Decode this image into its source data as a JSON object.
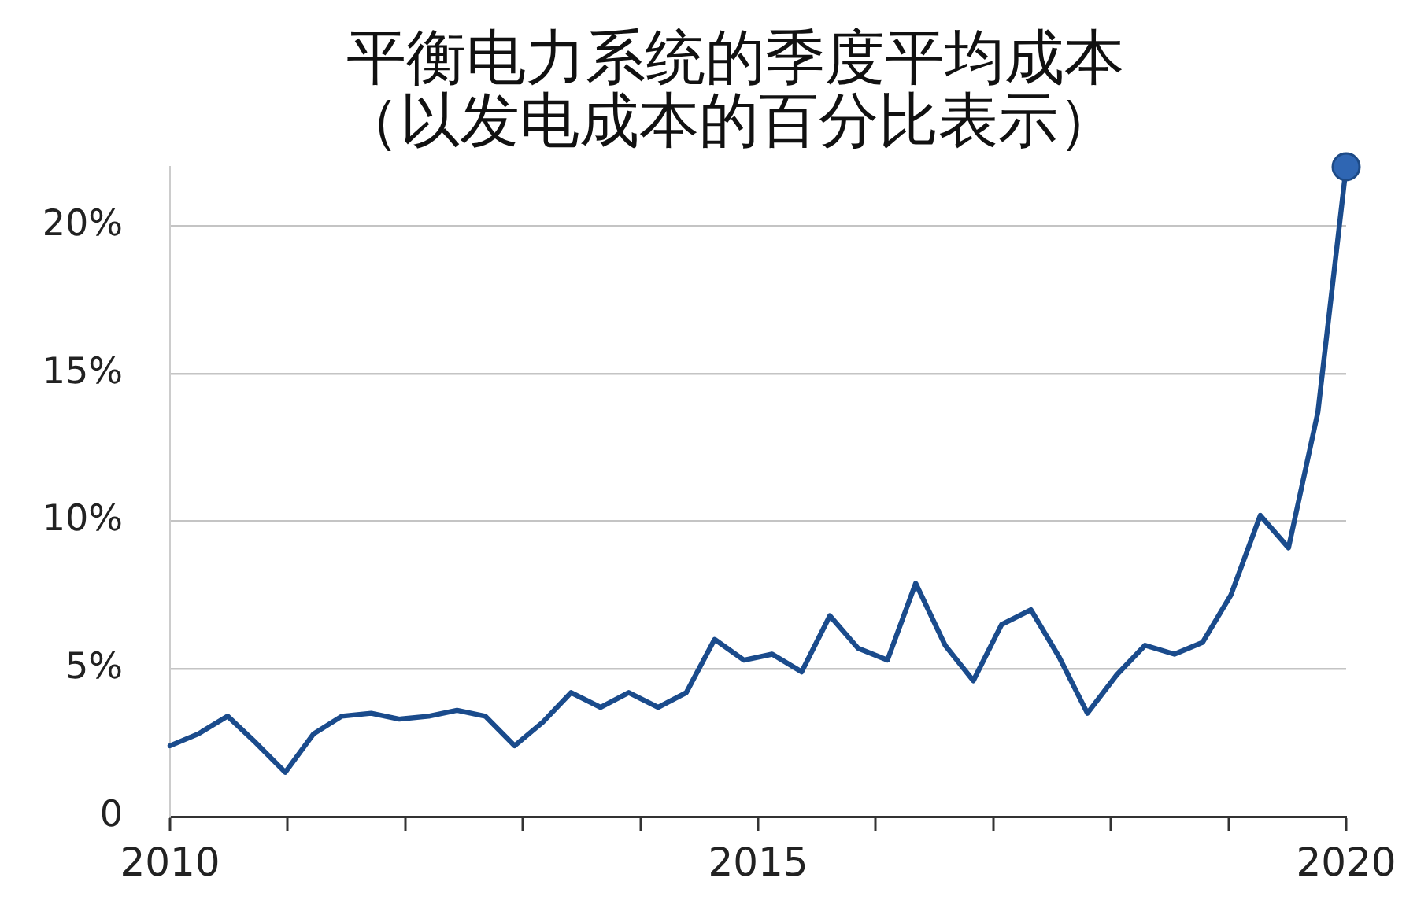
{
  "chart_data": {
    "type": "line",
    "title": "平衡电力系统的季度平均成本",
    "subtitle": "（以发电成本的百分比表示）",
    "series": [
      {
        "type": "line",
        "color": "#1a4b8c",
        "marker": "none",
        "x": [
          2010,
          2010.24,
          2010.49,
          2010.73,
          2010.98,
          2011.22,
          2011.46,
          2011.71,
          2011.95,
          2012.2,
          2012.44,
          2012.68,
          2012.93,
          2013.17,
          2013.41,
          2013.66,
          2013.9,
          2014.15,
          2014.39,
          2014.63,
          2014.88,
          2015.12,
          2015.37,
          2015.61,
          2015.85,
          2016.1,
          2016.34,
          2016.59,
          2016.83,
          2017.07,
          2017.32,
          2017.56,
          2017.8,
          2018.05,
          2018.29,
          2018.54,
          2018.78,
          2019.02,
          2019.27,
          2019.51,
          2019.76,
          2020
        ],
        "values": [
          2.4,
          2.8,
          3.4,
          2.5,
          1.5,
          2.8,
          3.4,
          3.5,
          3.3,
          3.4,
          3.6,
          3.4,
          2.4,
          3.2,
          4.2,
          3.7,
          4.2,
          3.7,
          4.2,
          6.0,
          5.3,
          5.5,
          4.9,
          6.8,
          5.7,
          5.3,
          7.9,
          5.8,
          4.6,
          6.5,
          7.0,
          5.4,
          3.5,
          4.8,
          5.8,
          5.5,
          5.9,
          7.5,
          10.2,
          9.1,
          13.7,
          22.0
        ]
      },
      {
        "type": "scatter",
        "color": "#2f66b3",
        "marker": "circle",
        "x": [
          2020
        ],
        "values": [
          22.0
        ]
      }
    ],
    "line_style": "solid",
    "xlim": [
      2010,
      2020
    ],
    "xticks": [
      2010,
      {
        "value": 2011,
        "label": null
      },
      {
        "value": 2012,
        "label": null
      },
      {
        "value": 2013,
        "label": null
      },
      {
        "value": 2014,
        "label": null
      },
      2015,
      {
        "value": 2016,
        "label": null
      },
      {
        "value": 2017,
        "label": null
      },
      {
        "value": 2018,
        "label": null
      },
      {
        "value": 2019,
        "label": null
      },
      2020
    ],
    "ylim": [
      0,
      22
    ],
    "yticks": [
      0,
      {
        "value": 5,
        "label": "5%"
      },
      {
        "value": 10,
        "label": "10%"
      },
      {
        "value": 15,
        "label": "15%"
      },
      {
        "value": 20,
        "label": "20%"
      }
    ],
    "grid": "y"
  }
}
